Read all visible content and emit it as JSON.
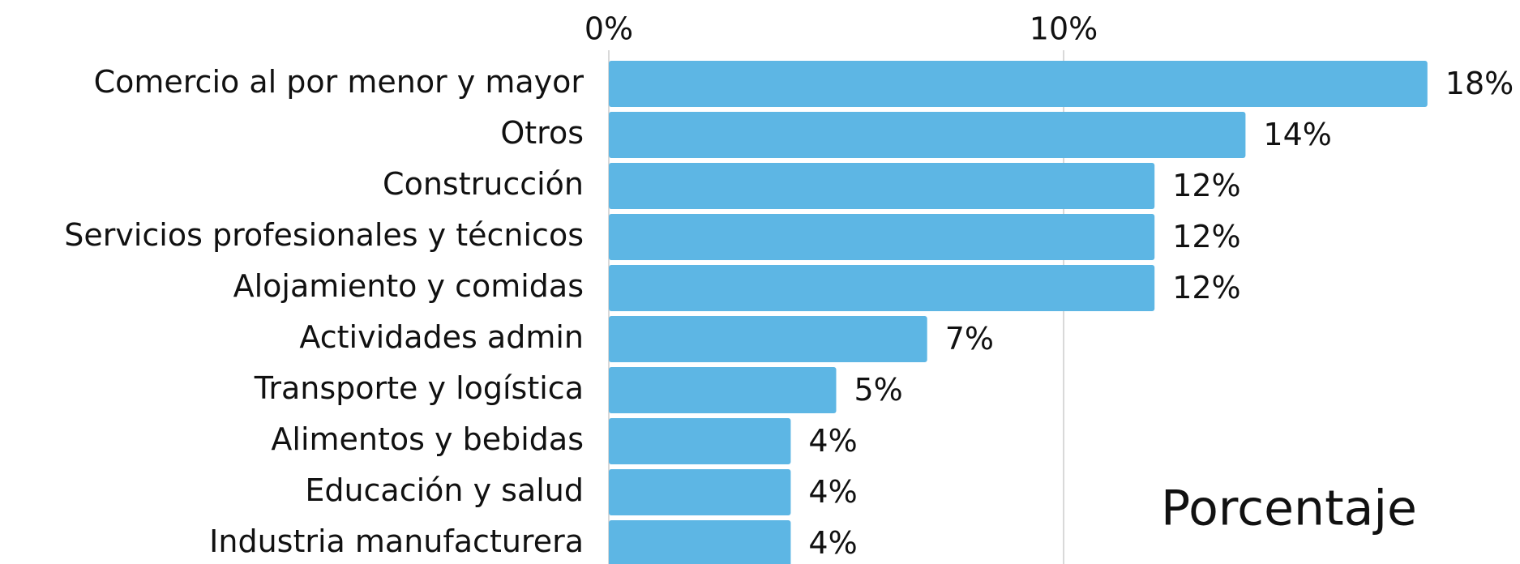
{
  "chart_data": {
    "type": "barh",
    "categories": [
      "Comercio al por menor y mayor",
      "Otros",
      "Construcción",
      "Servicios profesionales y técnicos",
      "Alojamiento y comidas",
      "Actividades admin",
      "Transporte y logística",
      "Alimentos y bebidas",
      "Educación y salud",
      "Industria manufacturera"
    ],
    "values": [
      18,
      14,
      12,
      12,
      12,
      7,
      5,
      4,
      4,
      4
    ],
    "value_labels": [
      "18%",
      "14%",
      "12%",
      "12%",
      "12%",
      "7%",
      "5%",
      "4%",
      "4%",
      "4%"
    ],
    "color": "#5db6e4",
    "xlim": [
      0,
      20
    ],
    "xticks": [
      {
        "value": 0,
        "label": "0%"
      },
      {
        "value": 10,
        "label": "10%"
      }
    ],
    "grid": true,
    "xlabel": "Porcentaje"
  }
}
